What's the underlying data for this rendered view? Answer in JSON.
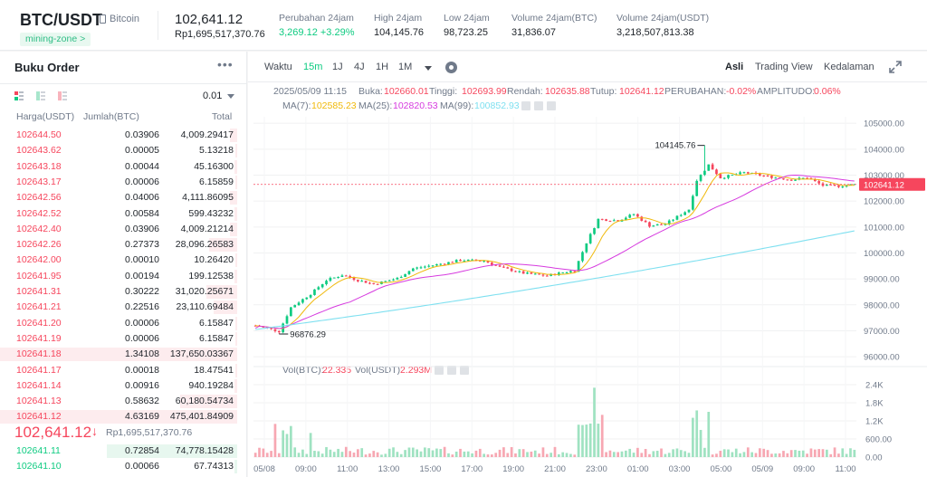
{
  "header": {
    "pair": "BTC/USDT",
    "coin_name": "Bitcoin",
    "tag": "mining-zone >",
    "last_price": "102,641.12",
    "last_price_idr": "Rp1,695,517,370.76",
    "stats": [
      {
        "label": "Perubahan 24jam",
        "value": "3,269.12 +3.29%",
        "up": true
      },
      {
        "label": "High 24jam",
        "value": "104,145.76",
        "up": false
      },
      {
        "label": "Low 24jam",
        "value": "98,723.25",
        "up": false
      },
      {
        "label": "Volume 24jam(BTC)",
        "value": "31,836.07",
        "up": false
      },
      {
        "label": "Volume 24jam(USDT)",
        "value": "3,218,507,813.38",
        "up": false
      }
    ]
  },
  "orderbook": {
    "title": "Buku Order",
    "more": "•••",
    "tick_size": "0.01",
    "col_price": "Harga(USDT)",
    "col_amount": "Jumlah(BTC)",
    "col_total": "Total",
    "asks": [
      {
        "price": "102644.50",
        "amount": "0.03906",
        "total": "4,009.29417",
        "depth": 0.03
      },
      {
        "price": "102643.62",
        "amount": "0.00005",
        "total": "5.13218",
        "depth": 0.005
      },
      {
        "price": "102643.18",
        "amount": "0.00044",
        "total": "45.16300",
        "depth": 0.01
      },
      {
        "price": "102643.17",
        "amount": "0.00006",
        "total": "6.15859",
        "depth": 0.005
      },
      {
        "price": "102642.56",
        "amount": "0.04006",
        "total": "4,111.86095",
        "depth": 0.03
      },
      {
        "price": "102642.52",
        "amount": "0.00584",
        "total": "599.43232",
        "depth": 0.01
      },
      {
        "price": "102642.40",
        "amount": "0.03906",
        "total": "4,009.21214",
        "depth": 0.03
      },
      {
        "price": "102642.26",
        "amount": "0.27373",
        "total": "28,096.26583",
        "depth": 0.12
      },
      {
        "price": "102642.00",
        "amount": "0.00010",
        "total": "10.26420",
        "depth": 0.005
      },
      {
        "price": "102641.95",
        "amount": "0.00194",
        "total": "199.12538",
        "depth": 0.01
      },
      {
        "price": "102641.31",
        "amount": "0.30222",
        "total": "31,020.25671",
        "depth": 0.13
      },
      {
        "price": "102641.21",
        "amount": "0.22516",
        "total": "23,110.69484",
        "depth": 0.1
      },
      {
        "price": "102641.20",
        "amount": "0.00006",
        "total": "6.15847",
        "depth": 0.005
      },
      {
        "price": "102641.19",
        "amount": "0.00006",
        "total": "6.15847",
        "depth": 0.005
      },
      {
        "price": "102641.18",
        "amount": "1.34108",
        "total": "137,650.03367",
        "depth": 1.0
      },
      {
        "price": "102641.17",
        "amount": "0.00018",
        "total": "18.47541",
        "depth": 0.005
      },
      {
        "price": "102641.14",
        "amount": "0.00916",
        "total": "940.19284",
        "depth": 0.01
      },
      {
        "price": "102641.13",
        "amount": "0.58632",
        "total": "60,180.54734",
        "depth": 0.24
      },
      {
        "price": "102641.12",
        "amount": "4.63169",
        "total": "475,401.84909",
        "depth": 1.0
      }
    ],
    "mid_price": "102,641.12",
    "mid_arrow": "↓",
    "mid_price_idr": "Rp1,695,517,370.76",
    "bids": [
      {
        "price": "102641.11",
        "amount": "0.72854",
        "total": "74,778.15428",
        "depth": 0.55
      },
      {
        "price": "102641.10",
        "amount": "0.00066",
        "total": "67.74313",
        "depth": 0.01
      }
    ]
  },
  "toolbar": {
    "time_label": "Waktu",
    "intervals": [
      "15m",
      "1J",
      "4J",
      "1H",
      "1M"
    ],
    "active_interval": "15m",
    "views": [
      "Asli",
      "Trading View",
      "Kedalaman"
    ],
    "active_view": "Asli"
  },
  "legend": {
    "datetime": "2025/05/09 11:15",
    "open_label": "Buka:",
    "open": "102660.01",
    "high_label": "Tinggi:",
    "high": "102693.99",
    "low_label": "Rendah:",
    "low": "102635.88",
    "close_label": "Tutup:",
    "close": "102641.12",
    "change_label": "PERUBAHAN:",
    "change": "-0.02%",
    "amp_label": "AMPLITUDO:",
    "amp": "0.06%",
    "ma7_label": "MA(7):",
    "ma7": "102585.23",
    "ma25_label": "MA(25):",
    "ma25": "102820.53",
    "ma99_label": "MA(99):",
    "ma99": "100852.93",
    "vol_btc_label": "Vol(BTC):",
    "vol_btc": "22.335",
    "vol_usdt_label": "Vol(USDT)",
    "vol_usdt": "2.293M"
  },
  "colors": {
    "up": "#0ecb81",
    "down": "#f6465d",
    "ma7": "#f0b90b",
    "ma25": "#d63adf",
    "ma99": "#7fe0f0",
    "price_tag": "#f6465d"
  },
  "chart_data": {
    "type": "candlestick",
    "price_axis_ticks": [
      "105000.00",
      "104000.00",
      "103000.00",
      "102000.00",
      "101000.00",
      "100000.00",
      "99000.00",
      "98000.00",
      "97000.00",
      "96000.00"
    ],
    "ylim": [
      95900,
      105250
    ],
    "volume_axis_ticks": [
      "2.4K",
      "1.8K",
      "1.2K",
      "600.00",
      "0.00"
    ],
    "vol_ylim": [
      0,
      2400
    ],
    "time_ticks": [
      "05/08",
      "09:00",
      "11:00",
      "13:00",
      "15:00",
      "17:00",
      "19:00",
      "21:00",
      "23:00",
      "01:00",
      "03:00",
      "05:00",
      "05/09",
      "09:00",
      "11:00"
    ],
    "current_price_label": "102641.12",
    "high_marker": "104145.76",
    "low_marker": "96876.29",
    "anchors": [
      [
        0,
        97200
      ],
      [
        6,
        96980
      ],
      [
        9,
        97900
      ],
      [
        14,
        98420
      ],
      [
        18,
        98950
      ],
      [
        22,
        99150
      ],
      [
        26,
        98950
      ],
      [
        30,
        98800
      ],
      [
        36,
        99020
      ],
      [
        40,
        99400
      ],
      [
        46,
        99550
      ],
      [
        52,
        99720
      ],
      [
        58,
        99700
      ],
      [
        62,
        99450
      ],
      [
        68,
        99220
      ],
      [
        74,
        99120
      ],
      [
        78,
        99250
      ],
      [
        81,
        99320
      ],
      [
        84,
        100400
      ],
      [
        87,
        101300
      ],
      [
        92,
        101250
      ],
      [
        96,
        101500
      ],
      [
        100,
        101050
      ],
      [
        104,
        101120
      ],
      [
        106,
        101300
      ],
      [
        110,
        101680
      ],
      [
        112,
        102800
      ],
      [
        115,
        103400
      ],
      [
        118,
        102900
      ],
      [
        124,
        103100
      ],
      [
        130,
        102950
      ],
      [
        136,
        102820
      ],
      [
        140,
        102900
      ],
      [
        144,
        102600
      ],
      [
        148,
        102580
      ],
      [
        152,
        102641
      ]
    ],
    "candle_count": 153,
    "ma99_start": 97050,
    "ma99_end": 100852,
    "ma25_start": 97100
  }
}
